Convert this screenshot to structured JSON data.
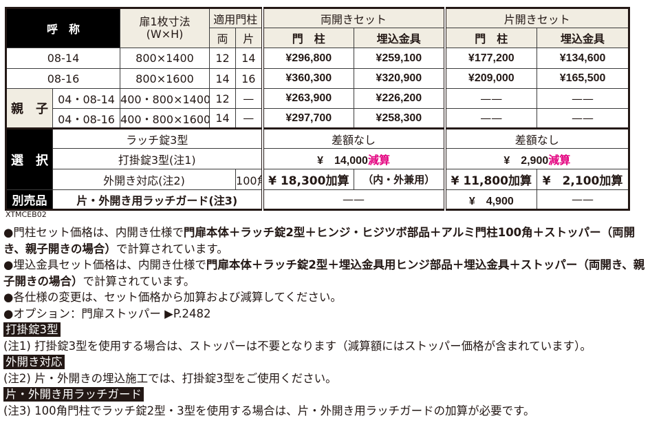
{
  "table": {
    "header": {
      "name": "呼　称",
      "size": "扉1枚寸法",
      "size_unit": "(W×H)",
      "post": "適用門柱",
      "post_double": "両",
      "post_single": "片",
      "double_set": "両開きセット",
      "single_set": "片開きセット",
      "col_post": "門　柱",
      "col_embed": "埋込金具"
    },
    "rows": [
      {
        "name": "08-14",
        "size": "800×1400",
        "pd": "12",
        "ps": "14",
        "d_post": "¥296,800",
        "d_embed": "¥259,100",
        "s_post": "¥177,200",
        "s_embed": "¥134,600"
      },
      {
        "name": "08-16",
        "size": "800×1600",
        "pd": "14",
        "ps": "16",
        "d_post": "¥360,300",
        "d_embed": "¥320,900",
        "s_post": "¥209,000",
        "s_embed": "¥165,500"
      },
      {
        "name": "04・08-14",
        "size": "400・800×1400",
        "pd": "12",
        "ps": "—",
        "d_post": "¥263,900",
        "d_embed": "¥226,200",
        "s_post": "——",
        "s_embed": "——"
      },
      {
        "name": "04・08-16",
        "size": "400・800×1600",
        "pd": "14",
        "ps": "—",
        "d_post": "¥297,700",
        "d_embed": "¥258,300",
        "s_post": "——",
        "s_embed": "——"
      }
    ],
    "oyako": "親　子",
    "select": {
      "label": "選　択",
      "latch3": {
        "label": "ラッチ錠3型",
        "double": "差額なし",
        "single": "差額なし"
      },
      "uchikake": {
        "label": "打掛錠3型(注1)",
        "double_amt": "¥　14,000",
        "double_suffix": "減算",
        "single_amt": "¥　2,900",
        "single_suffix": "減算"
      },
      "outward": {
        "label": "外開き対応(注2)",
        "post": "100角",
        "double_a": "¥ 18,300加算",
        "double_b": "（内・外兼用）",
        "single_a": "¥ 11,800加算",
        "single_b": "¥　2,100加算"
      }
    },
    "separate": {
      "label": "別売品",
      "item": "片・外開き用ラッチガード(注3)",
      "double": "——",
      "single_post": "¥　4,900",
      "single_embed": "——"
    },
    "highlight_color": "#e4007f"
  },
  "code": "XTMCEB02",
  "notes": {
    "n1_a": "●門柱セット価格は、内開き仕様で",
    "n1_b": "門扉本体＋ラッチ錠2型＋ヒンジ・ヒジツボ部品＋アルミ門柱100角＋ストッパー（両開き、親子開きの場合）",
    "n1_c": "で計算されています。",
    "n2_a": "●埋込金具セット価格は、内開き仕様で",
    "n2_b": "門扉本体＋ラッチ錠2型＋埋込金具用ヒンジ部品＋埋込金具＋ストッパー（両開き、親子開きの場合）",
    "n2_c": "で計算されています。",
    "n3": "●各仕様の変更は、セット価格から加算および減算してください。",
    "n4": "●オプション：門扉ストッパー ▶P.2482",
    "h1": "打掛錠3型",
    "c1": "(注1) 打掛錠3型を使用する場合は、ストッパーは不要となります（減算額にはストッパー価格が含まれています）。",
    "h2": "外開き対応",
    "c2": "(注2) 片・外開きの埋込施工では、打掛錠3型をご使用ください。",
    "h3": "片・外開き用ラッチガード",
    "c3": "(注3) 100角門柱でラッチ錠2型・3型を使用する場合は、片・外開き用ラッチガードの加算が必要です。"
  }
}
